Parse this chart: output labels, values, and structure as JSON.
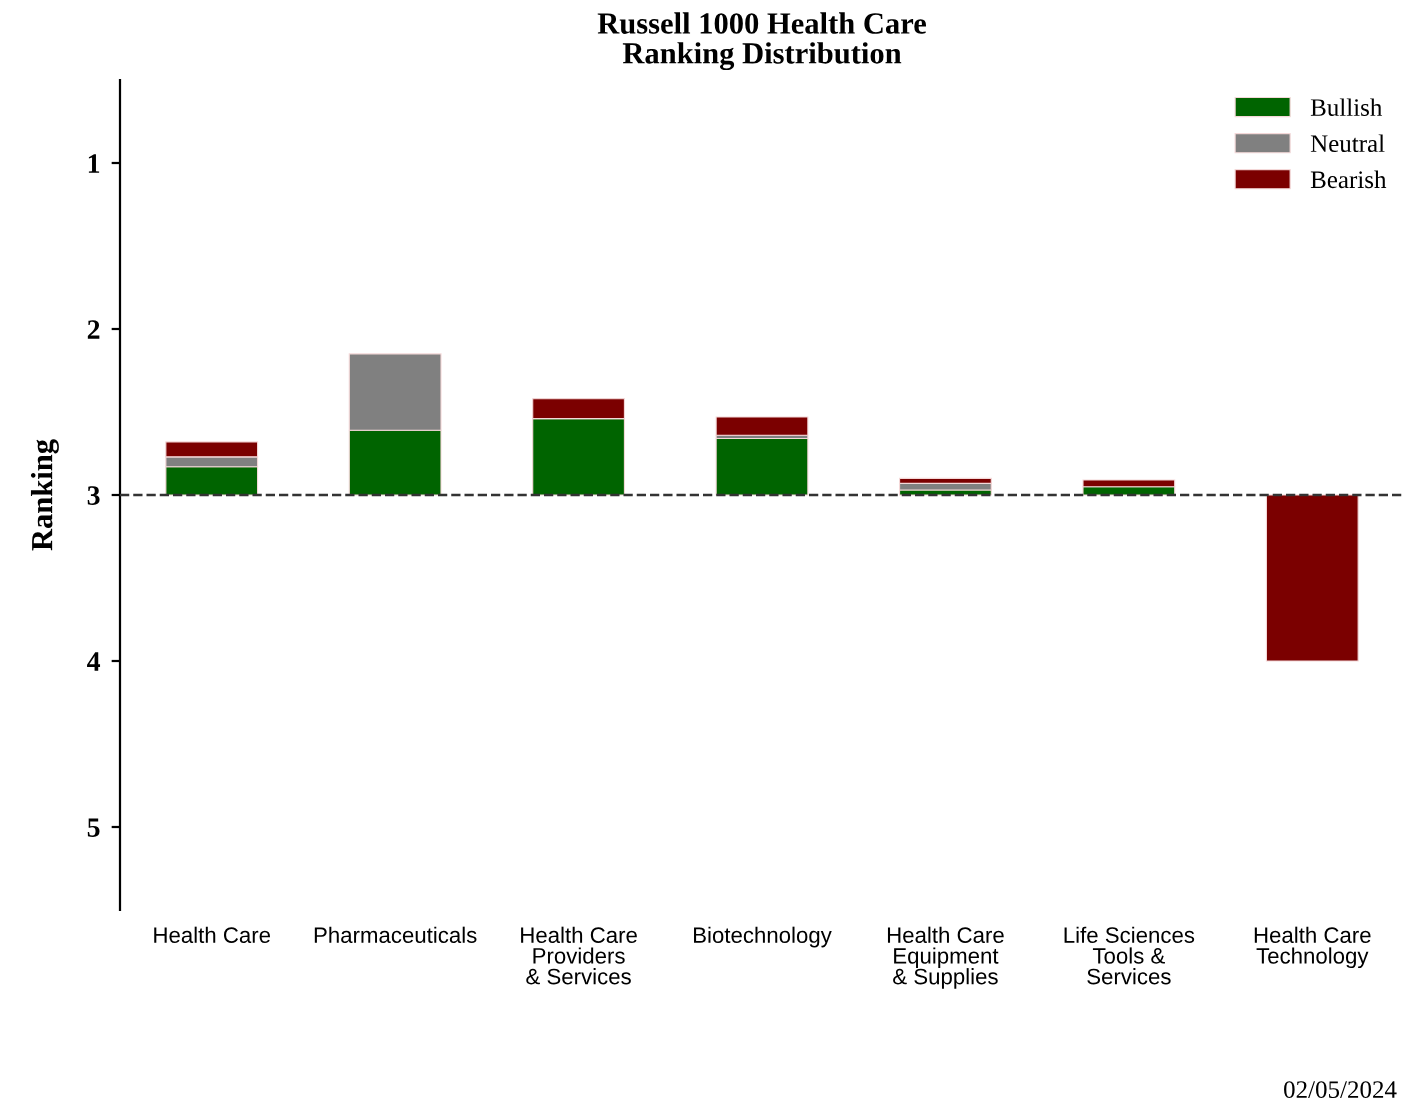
{
  "chart_data": {
    "type": "bar",
    "title": "Russell 1000 Health Care\nRanking Distribution",
    "ylabel": "Ranking",
    "categories": [
      "Health Care",
      "Pharmaceuticals",
      "Health Care\nProviders\n& Services",
      "Biotechnology",
      "Health Care\nEquipment\n& Supplies",
      "Life Sciences\nTools &\nServices",
      "Health Care\nTechnology"
    ],
    "series": [
      {
        "name": "Bullish",
        "color": "#006400",
        "base": [
          3,
          3,
          3,
          3,
          3,
          3,
          null
        ],
        "values": [
          -0.17,
          -0.39,
          -0.46,
          -0.34,
          -0.03,
          -0.05,
          null
        ]
      },
      {
        "name": "Neutral",
        "color": "#808080",
        "base": [
          2.83,
          2.61,
          null,
          2.66,
          2.97,
          null,
          null
        ],
        "values": [
          -0.06,
          -0.46,
          null,
          -0.02,
          -0.04,
          null,
          null
        ]
      },
      {
        "name": "Bearish",
        "color": "#7b0000",
        "base": [
          2.77,
          null,
          2.54,
          2.64,
          2.93,
          2.95,
          3
        ],
        "values": [
          -0.09,
          null,
          -0.12,
          -0.11,
          -0.03,
          -0.04,
          1
        ]
      }
    ],
    "ylim": [
      5.5,
      0.5
    ],
    "yticks": [
      1,
      2,
      3,
      4,
      5
    ],
    "ref_lines": [
      {
        "axis": "y",
        "value": 3,
        "color": "#333333",
        "line_style": "dashed"
      }
    ],
    "legend": "top right",
    "annotations": [
      "02/05/2024"
    ]
  }
}
